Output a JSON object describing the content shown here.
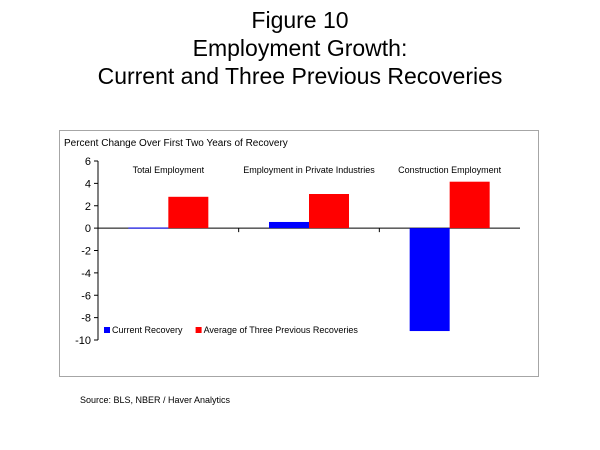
{
  "figure": {
    "title_lines": [
      "Figure 10",
      "Employment Growth:",
      "Current and Three Previous Recoveries"
    ]
  },
  "source": "Source:  BLS, NBER / Haver Analytics",
  "chart_data": {
    "type": "bar",
    "ylabel": "Percent Change Over First Two Years of Recovery",
    "ylim": [
      -10,
      6
    ],
    "yticks": [
      6,
      4,
      2,
      0,
      -2,
      -4,
      -6,
      -8,
      -10
    ],
    "categories": [
      "Total Employment",
      "Employment in Private Industries",
      "Construction Employment"
    ],
    "series": [
      {
        "name": "Current Recovery",
        "color": "#0000ff",
        "values": [
          0.05,
          0.55,
          -9.2
        ]
      },
      {
        "name": "Average of Three Previous Recoveries",
        "color": "#ff0000",
        "values": [
          2.8,
          3.05,
          4.15
        ]
      }
    ],
    "legend_position": "bottom-left",
    "grid": false
  }
}
